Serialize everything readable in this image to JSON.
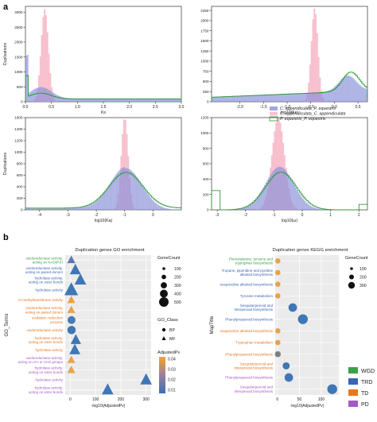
{
  "panel_labels": {
    "a": "a",
    "b": "b"
  },
  "colors": {
    "pink": "#f7b6c7",
    "blue": "#8891d8",
    "green": "#2e9a3a",
    "WGD": "#3aa14a",
    "TRD": "#3b63b8",
    "TD": "#e8751e",
    "PD": "#a45ac6"
  },
  "chart_data": [
    {
      "type": "histogram",
      "panel": "a-1",
      "ylabel": "Duplications",
      "xlabel": "Ks",
      "xlim": [
        0,
        3
      ],
      "ylim": [
        0,
        3200
      ],
      "x_ticks": [
        "0.0",
        "0.5",
        "1.0",
        "1.5",
        "2.0",
        "2.5",
        "3.0"
      ],
      "y_ticks": [
        "0",
        "500",
        "1000",
        "1500",
        "2000",
        "2500",
        "3000"
      ],
      "series": []
    },
    {
      "type": "histogram",
      "panel": "a-2",
      "ylabel": "",
      "xlabel": "log10(Ks)",
      "xlim": [
        -2.6,
        0.7
      ],
      "ylim": [
        0,
        2350
      ],
      "x_ticks": [
        "-2.0",
        "-1.5",
        "-1.0",
        "-0.5",
        "0.0",
        "0.5"
      ],
      "y_ticks": [
        "0",
        "250",
        "500",
        "750",
        "1000",
        "1250",
        "1500",
        "1750",
        "2000",
        "2250"
      ],
      "series": []
    },
    {
      "type": "histogram",
      "panel": "a-3",
      "ylabel": "Duplications",
      "xlabel": "log10(Ka)",
      "xlim": [
        -4.5,
        1.0
      ],
      "ylim": [
        0,
        1600
      ],
      "x_ticks": [
        "-4",
        "-3",
        "-2",
        "-1",
        "0"
      ],
      "y_ticks": [
        "0",
        "200",
        "400",
        "600",
        "800",
        "1000",
        "1200",
        "1400",
        "1600"
      ],
      "series": []
    },
    {
      "type": "histogram",
      "panel": "a-4",
      "ylabel": "",
      "xlabel": "log10(ω)",
      "xlim": [
        -3.2,
        2.3
      ],
      "ylim": [
        0,
        1200
      ],
      "x_ticks": [
        "-3",
        "-2",
        "-1",
        "0",
        "1",
        "2"
      ],
      "y_ticks": [
        "0",
        "200",
        "400",
        "600",
        "800",
        "1000",
        "1200"
      ],
      "series": []
    },
    {
      "type": "scatter",
      "panel": "b-1",
      "title": "Duplication genes GO enrichment",
      "ylabel": "GO_Terms",
      "xlabel": "-log10(AdjustedPv)",
      "xlim": [
        -20,
        320
      ],
      "x_ticks": [
        "0",
        "100",
        "200",
        "300"
      ],
      "terms": [
        {
          "label": "oxidoreductase activity,\nacting on NAD(P)H",
          "x": 4,
          "size": 120,
          "shape": "MF",
          "color": "#5d78b0",
          "cls": "WGD"
        },
        {
          "label": "oxidoreductase activity,\nacting on paired donors",
          "x": 20,
          "size": 280,
          "shape": "MF",
          "color": "#3e77b5",
          "cls": "TRD"
        },
        {
          "label": "hydrolase activity,\nacting on ester bonds",
          "x": 40,
          "size": 320,
          "shape": "MF",
          "color": "#3e77b5",
          "cls": "TRD"
        },
        {
          "label": "hydrolase activity",
          "x": 4,
          "size": 480,
          "shape": "MF",
          "color": "#3e77b5",
          "cls": "TRD"
        },
        {
          "label": "O-methyltransferase activity",
          "x": 4,
          "size": 110,
          "shape": "MF",
          "color": "#f0a040",
          "cls": "TD"
        },
        {
          "label": "oxidoreductase activity,\nacting on paired donors",
          "x": 4,
          "size": 110,
          "shape": "MF",
          "color": "#e8a24e",
          "cls": "TD"
        },
        {
          "label": "oxidation−reduction\nprocess",
          "x": 5,
          "size": 110,
          "shape": "BP",
          "color": "#4a7bb4",
          "cls": "TD"
        },
        {
          "label": "oxidoreductase activity",
          "x": 5,
          "size": 130,
          "shape": "BP",
          "color": "#3e77b5",
          "cls": "TD"
        },
        {
          "label": "hydrolase activity,\nacting on ester bonds",
          "x": 22,
          "size": 240,
          "shape": "MF",
          "color": "#3e77b5",
          "cls": "TD"
        },
        {
          "label": "hydrolase activity",
          "x": 18,
          "size": 280,
          "shape": "MF",
          "color": "#3e77b5",
          "cls": "TD"
        },
        {
          "label": "oxidoreductase activity,\nacting on CH or CH2 groups",
          "x": 4,
          "size": 110,
          "shape": "MF",
          "color": "#e8a24e",
          "cls": "PD"
        },
        {
          "label": "hydrolase activity,\nacting on ester bonds",
          "x": 4,
          "size": 110,
          "shape": "MF",
          "color": "#e8a24e",
          "cls": "PD"
        },
        {
          "label": "hydrolase activity",
          "x": 300,
          "size": 320,
          "shape": "MF",
          "color": "#3e77b5",
          "cls": "PD"
        },
        {
          "label": "hydrolase activity,\nacting on ester bonds",
          "x": 148,
          "size": 320,
          "shape": "MF",
          "color": "#3e77b5",
          "cls": "PD"
        }
      ],
      "legend_genecount": {
        "title": "GeneCount",
        "values": [
          "100",
          "200",
          "300",
          "400",
          "500"
        ]
      },
      "legend_class": {
        "title": "GO_Class",
        "values": [
          "BP",
          "MF"
        ]
      },
      "legend_color": {
        "title": "AdjustedPv",
        "ticks": [
          "0.04",
          "0.03",
          "0.02",
          "0.01"
        ]
      }
    },
    {
      "type": "scatter",
      "panel": "b-2",
      "title": "Duplication genes KEGG enrichment",
      "ylabel": "MapTitle",
      "xlabel": "-log10(AdjustedPv)",
      "xlim": [
        -5,
        140
      ],
      "x_ticks": [
        "0",
        "50",
        "100"
      ],
      "terms": [
        {
          "label": "Phenylalanine, tyrosine and\ntryptophan biosynthesis",
          "x": 1,
          "size": 40,
          "color": "#e8a24e",
          "cls": "WGD"
        },
        {
          "label": "Tropane, piperidine and pyridine\nalkaloid biosynthesis",
          "x": 1,
          "size": 40,
          "color": "#e8a24e",
          "cls": "TRD"
        },
        {
          "label": "Isoquinoline alkaloid biosynthesis",
          "x": 1,
          "size": 40,
          "color": "#e8a24e",
          "cls": "TRD"
        },
        {
          "label": "Tyrosine metabolism",
          "x": 1,
          "size": 40,
          "color": "#e8a24e",
          "cls": "TRD"
        },
        {
          "label": "Sesquiterpenoid and\ntriterpenoid biosynthesis",
          "x": 35,
          "size": 160,
          "color": "#3e77b5",
          "cls": "TRD"
        },
        {
          "label": "Phenylpropanoid biosynthesis",
          "x": 58,
          "size": 230,
          "color": "#3e77b5",
          "cls": "TRD"
        },
        {
          "label": "Isoquinoline alkaloid biosynthesis",
          "x": 1,
          "size": 40,
          "color": "#e8a24e",
          "cls": "TD"
        },
        {
          "label": "Tryptophan metabolism",
          "x": 1,
          "size": 40,
          "color": "#e8a24e",
          "cls": "TD"
        },
        {
          "label": "Phenylpropanoid biosynthesis",
          "x": 1,
          "size": 60,
          "color": "#808080",
          "cls": "TD"
        },
        {
          "label": "Sesquiterpenoid and\ntriterpenoid biosynthesis",
          "x": 20,
          "size": 100,
          "color": "#3e77b5",
          "cls": "TD"
        },
        {
          "label": "Phenylpropanoid biosynthesis",
          "x": 26,
          "size": 160,
          "color": "#3e77b5",
          "cls": "PD"
        },
        {
          "label": "Sesquiterpenoid and\ntriterpenoid biosynthesis",
          "x": 125,
          "size": 230,
          "color": "#3e77b5",
          "cls": "PD"
        }
      ],
      "legend_genecount": {
        "title": "GeneCount",
        "values": [
          "100",
          "200",
          "300"
        ]
      }
    }
  ],
  "hist_legend": [
    {
      "label": "C. appendiculata_P. equestris",
      "color": "#8891d8"
    },
    {
      "label": "C. appendiculata_C. appendiculata",
      "color": "#f7b6c7"
    },
    {
      "label": "P. equestris_P. equestris",
      "color": "#2e9a3a"
    }
  ],
  "class_legend": [
    {
      "label": "WGD",
      "color": "#3aa14a"
    },
    {
      "label": "TRD",
      "color": "#3b63b8"
    },
    {
      "label": "TD",
      "color": "#e8751e"
    },
    {
      "label": "PD",
      "color": "#a45ac6"
    }
  ]
}
